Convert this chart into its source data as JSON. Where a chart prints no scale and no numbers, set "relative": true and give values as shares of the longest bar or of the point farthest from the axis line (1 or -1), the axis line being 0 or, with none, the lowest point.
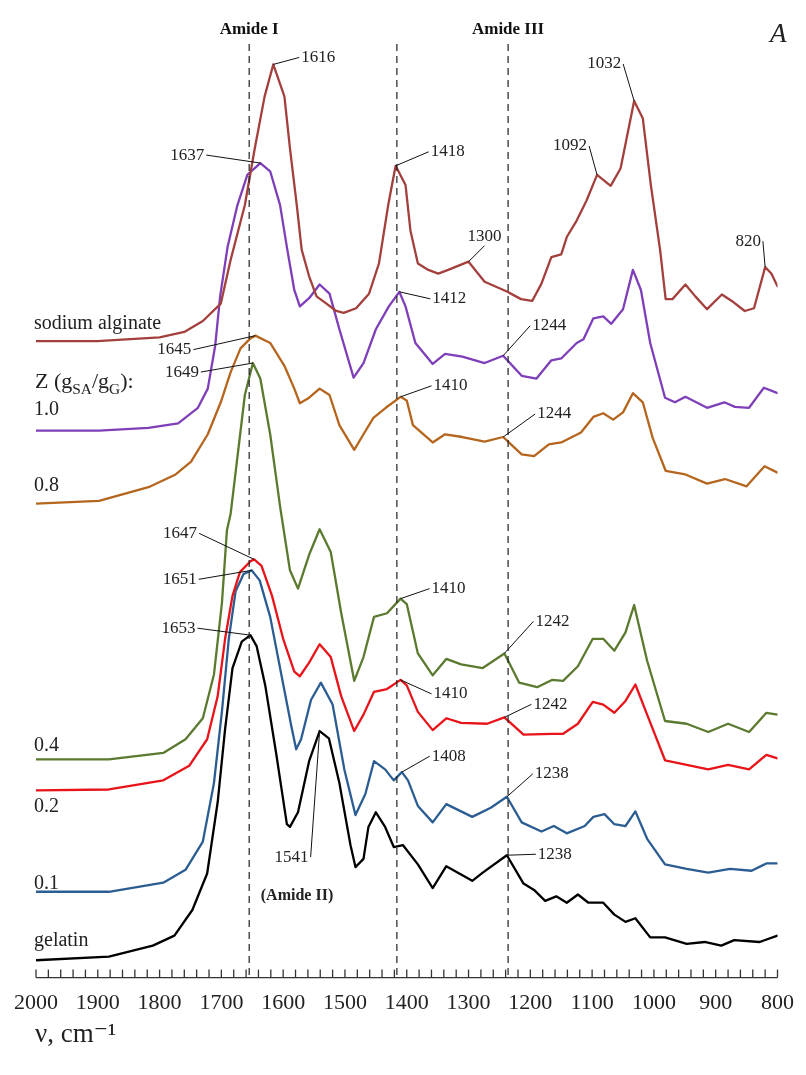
{
  "chart_data": {
    "type": "line",
    "xlabel": "ν, cm⁻¹",
    "relative": true,
    "xlim": [
      2000,
      800
    ],
    "xticks": [
      2000,
      {
        "value": 1980,
        "label": null
      },
      {
        "value": 1960,
        "label": null
      },
      {
        "value": 1940,
        "label": null
      },
      {
        "value": 1920,
        "label": null
      },
      1900,
      {
        "value": 1880,
        "label": null
      },
      {
        "value": 1860,
        "label": null
      },
      {
        "value": 1840,
        "label": null
      },
      {
        "value": 1820,
        "label": null
      },
      1800,
      {
        "value": 1780,
        "label": null
      },
      {
        "value": 1760,
        "label": null
      },
      {
        "value": 1740,
        "label": null
      },
      {
        "value": 1720,
        "label": null
      },
      1700,
      {
        "value": 1680,
        "label": null
      },
      {
        "value": 1660,
        "label": null
      },
      {
        "value": 1640,
        "label": null
      },
      {
        "value": 1620,
        "label": null
      },
      1600,
      {
        "value": 1580,
        "label": null
      },
      {
        "value": 1560,
        "label": null
      },
      {
        "value": 1540,
        "label": null
      },
      {
        "value": 1520,
        "label": null
      },
      1500,
      {
        "value": 1480,
        "label": null
      },
      {
        "value": 1460,
        "label": null
      },
      {
        "value": 1440,
        "label": null
      },
      {
        "value": 1420,
        "label": null
      },
      1400,
      {
        "value": 1380,
        "label": null
      },
      {
        "value": 1360,
        "label": null
      },
      {
        "value": 1340,
        "label": null
      },
      {
        "value": 1320,
        "label": null
      },
      1300,
      {
        "value": 1280,
        "label": null
      },
      {
        "value": 1260,
        "label": null
      },
      {
        "value": 1240,
        "label": null
      },
      {
        "value": 1220,
        "label": null
      },
      1200,
      {
        "value": 1180,
        "label": null
      },
      {
        "value": 1160,
        "label": null
      },
      {
        "value": 1140,
        "label": null
      },
      {
        "value": 1120,
        "label": null
      },
      1100,
      {
        "value": 1080,
        "label": null
      },
      {
        "value": 1060,
        "label": null
      },
      {
        "value": 1040,
        "label": null
      },
      {
        "value": 1020,
        "label": null
      },
      1000,
      {
        "value": 980,
        "label": null
      },
      {
        "value": 960,
        "label": null
      },
      {
        "value": 940,
        "label": null
      },
      {
        "value": 920,
        "label": null
      },
      900,
      {
        "value": 880,
        "label": null
      },
      {
        "value": 860,
        "label": null
      },
      {
        "value": 840,
        "label": null
      },
      {
        "value": 820,
        "label": null
      },
      800
    ],
    "series": [
      {
        "name": "sodium alginate",
        "color": "#a3403d",
        "x": [
          2000,
          1901,
          1800,
          1760,
          1730,
          1701,
          1685,
          1662,
          1646,
          1630,
          1616,
          1598,
          1589,
          1578,
          1570,
          1558,
          1546,
          1530,
          1514,
          1502,
          1482,
          1461,
          1445,
          1430,
          1418,
          1402,
          1394,
          1382,
          1365,
          1349,
          1333,
          1300,
          1274,
          1237,
          1215,
          1197,
          1182,
          1166,
          1150,
          1141,
          1125,
          1109,
          1092,
          1070,
          1054,
          1032,
          1018,
          1005,
          990,
          981,
          970,
          949,
          933,
          914,
          890,
          874,
          853,
          838,
          820,
          810,
          800
        ],
        "values": [
          0.697,
          0.697,
          0.701,
          0.707,
          0.719,
          0.738,
          0.786,
          0.846,
          0.908,
          0.965,
          1.0,
          0.965,
          0.908,
          0.846,
          0.797,
          0.768,
          0.746,
          0.738,
          0.73,
          0.728,
          0.733,
          0.749,
          0.782,
          0.846,
          0.889,
          0.868,
          0.818,
          0.782,
          0.775,
          0.771,
          0.775,
          0.784,
          0.762,
          0.751,
          0.743,
          0.741,
          0.76,
          0.789,
          0.792,
          0.811,
          0.829,
          0.851,
          0.879,
          0.867,
          0.886,
          0.96,
          0.941,
          0.868,
          0.797,
          0.743,
          0.743,
          0.759,
          0.746,
          0.732,
          0.748,
          0.741,
          0.73,
          0.733,
          0.778,
          0.771,
          0.757
        ]
      },
      {
        "name": "1.0",
        "color": "#7e3fb8",
        "x": [
          2000,
          1898,
          1818,
          1770,
          1738,
          1722,
          1710,
          1702,
          1690,
          1674,
          1658,
          1637,
          1621,
          1605,
          1594,
          1582,
          1573,
          1558,
          1541,
          1525,
          1509,
          1486,
          1470,
          1450,
          1429,
          1412,
          1402,
          1386,
          1358,
          1338,
          1310,
          1274,
          1244,
          1214,
          1190,
          1166,
          1150,
          1125,
          1114,
          1098,
          1082,
          1069,
          1050,
          1034,
          1021,
          1006,
          982,
          966,
          949,
          914,
          886,
          869,
          846,
          822,
          800
        ],
        "values": [
          0.599,
          0.599,
          0.602,
          0.607,
          0.624,
          0.645,
          0.692,
          0.746,
          0.8,
          0.846,
          0.879,
          0.892,
          0.883,
          0.846,
          0.8,
          0.753,
          0.735,
          0.744,
          0.759,
          0.749,
          0.71,
          0.657,
          0.673,
          0.71,
          0.735,
          0.751,
          0.735,
          0.695,
          0.672,
          0.683,
          0.68,
          0.673,
          0.681,
          0.659,
          0.656,
          0.676,
          0.678,
          0.695,
          0.699,
          0.722,
          0.724,
          0.716,
          0.732,
          0.775,
          0.753,
          0.695,
          0.635,
          0.63,
          0.636,
          0.624,
          0.63,
          0.625,
          0.624,
          0.646,
          0.64
        ]
      },
      {
        "name": "0.8",
        "color": "#b5651d",
        "x": [
          2000,
          1898,
          1818,
          1774,
          1749,
          1722,
          1701,
          1685,
          1669,
          1653,
          1645,
          1621,
          1598,
          1582,
          1573,
          1558,
          1541,
          1525,
          1509,
          1485,
          1470,
          1454,
          1434,
          1410,
          1400,
          1390,
          1358,
          1338,
          1310,
          1274,
          1244,
          1214,
          1194,
          1170,
          1150,
          1118,
          1098,
          1082,
          1066,
          1050,
          1034,
          1018,
          1002,
          981,
          949,
          914,
          885,
          850,
          821,
          800
        ],
        "values": [
          0.519,
          0.522,
          0.537,
          0.551,
          0.565,
          0.595,
          0.63,
          0.663,
          0.689,
          0.7,
          0.703,
          0.695,
          0.67,
          0.645,
          0.629,
          0.635,
          0.645,
          0.638,
          0.605,
          0.578,
          0.595,
          0.613,
          0.624,
          0.636,
          0.632,
          0.605,
          0.586,
          0.595,
          0.592,
          0.587,
          0.592,
          0.573,
          0.571,
          0.584,
          0.586,
          0.597,
          0.614,
          0.618,
          0.611,
          0.619,
          0.64,
          0.63,
          0.591,
          0.555,
          0.551,
          0.541,
          0.546,
          0.538,
          0.56,
          0.553
        ]
      },
      {
        "name": "0.4",
        "color": "#5b7a30",
        "x": [
          2000,
          1882,
          1794,
          1758,
          1730,
          1712,
          1699,
          1691,
          1685,
          1662,
          1649,
          1637,
          1621,
          1605,
          1589,
          1576,
          1558,
          1541,
          1523,
          1506,
          1485,
          1470,
          1453,
          1432,
          1410,
          1400,
          1382,
          1358,
          1336,
          1312,
          1277,
          1242,
          1218,
          1189,
          1165,
          1147,
          1123,
          1099,
          1082,
          1064,
          1046,
          1032,
          1011,
          982,
          947,
          912,
          880,
          846,
          818,
          800
        ],
        "values": [
          0.239,
          0.239,
          0.246,
          0.261,
          0.284,
          0.332,
          0.411,
          0.49,
          0.508,
          0.638,
          0.673,
          0.656,
          0.595,
          0.516,
          0.446,
          0.426,
          0.463,
          0.491,
          0.466,
          0.399,
          0.325,
          0.351,
          0.395,
          0.399,
          0.415,
          0.409,
          0.355,
          0.331,
          0.349,
          0.343,
          0.339,
          0.355,
          0.323,
          0.318,
          0.326,
          0.325,
          0.341,
          0.371,
          0.371,
          0.358,
          0.378,
          0.408,
          0.347,
          0.281,
          0.278,
          0.269,
          0.278,
          0.269,
          0.29,
          0.288
        ]
      },
      {
        "name": "0.2",
        "color": "#e8141a",
        "x": [
          2000,
          1882,
          1794,
          1752,
          1723,
          1706,
          1694,
          1682,
          1670,
          1653,
          1647,
          1635,
          1618,
          1600,
          1582,
          1573,
          1558,
          1541,
          1523,
          1506,
          1485,
          1470,
          1453,
          1432,
          1410,
          1400,
          1382,
          1358,
          1336,
          1312,
          1270,
          1242,
          1211,
          1165,
          1147,
          1123,
          1099,
          1082,
          1064,
          1046,
          1030,
          1011,
          982,
          947,
          912,
          880,
          846,
          818,
          800
        ],
        "values": [
          0.205,
          0.206,
          0.216,
          0.232,
          0.261,
          0.308,
          0.371,
          0.418,
          0.444,
          0.456,
          0.458,
          0.451,
          0.418,
          0.371,
          0.335,
          0.33,
          0.345,
          0.365,
          0.351,
          0.308,
          0.27,
          0.288,
          0.313,
          0.316,
          0.326,
          0.32,
          0.291,
          0.271,
          0.284,
          0.279,
          0.278,
          0.285,
          0.266,
          0.267,
          0.267,
          0.278,
          0.302,
          0.299,
          0.29,
          0.303,
          0.321,
          0.288,
          0.238,
          0.233,
          0.228,
          0.233,
          0.228,
          0.244,
          0.24
        ]
      },
      {
        "name": "0.1",
        "color": "#2b5d92",
        "x": [
          2000,
          1882,
          1794,
          1758,
          1730,
          1712,
          1699,
          1688,
          1677,
          1664,
          1651,
          1638,
          1621,
          1603,
          1587,
          1579,
          1571,
          1555,
          1539,
          1520,
          1501,
          1483,
          1467,
          1453,
          1435,
          1421,
          1408,
          1398,
          1382,
          1358,
          1336,
          1294,
          1264,
          1238,
          1214,
          1182,
          1162,
          1141,
          1112,
          1098,
          1080,
          1064,
          1046,
          1030,
          1011,
          982,
          947,
          912,
          877,
          842,
          818,
          800
        ],
        "values": [
          0.094,
          0.094,
          0.104,
          0.118,
          0.149,
          0.213,
          0.292,
          0.371,
          0.423,
          0.442,
          0.446,
          0.435,
          0.395,
          0.332,
          0.276,
          0.25,
          0.261,
          0.304,
          0.323,
          0.299,
          0.228,
          0.178,
          0.201,
          0.237,
          0.228,
          0.216,
          0.225,
          0.216,
          0.188,
          0.17,
          0.19,
          0.176,
          0.186,
          0.198,
          0.17,
          0.16,
          0.166,
          0.158,
          0.166,
          0.176,
          0.179,
          0.168,
          0.166,
          0.182,
          0.152,
          0.124,
          0.119,
          0.115,
          0.119,
          0.117,
          0.125,
          0.125
        ]
      },
      {
        "name": "gelatin",
        "color": "#000000",
        "x": [
          2000,
          1882,
          1811,
          1776,
          1747,
          1723,
          1706,
          1694,
          1682,
          1667,
          1653,
          1643,
          1629,
          1611,
          1594,
          1589,
          1576,
          1558,
          1541,
          1526,
          1509,
          1491,
          1483,
          1470,
          1462,
          1450,
          1435,
          1421,
          1406,
          1382,
          1358,
          1336,
          1294,
          1277,
          1238,
          1211,
          1194,
          1176,
          1158,
          1141,
          1123,
          1106,
          1082,
          1064,
          1046,
          1030,
          1006,
          982,
          947,
          918,
          891,
          870,
          829,
          800
        ],
        "values": [
          0.019,
          0.023,
          0.035,
          0.046,
          0.074,
          0.114,
          0.192,
          0.272,
          0.339,
          0.368,
          0.375,
          0.363,
          0.32,
          0.244,
          0.168,
          0.165,
          0.181,
          0.237,
          0.27,
          0.262,
          0.213,
          0.145,
          0.121,
          0.13,
          0.165,
          0.181,
          0.165,
          0.143,
          0.145,
          0.124,
          0.098,
          0.122,
          0.106,
          0.115,
          0.134,
          0.103,
          0.096,
          0.084,
          0.089,
          0.082,
          0.091,
          0.082,
          0.082,
          0.069,
          0.061,
          0.065,
          0.044,
          0.044,
          0.037,
          0.039,
          0.035,
          0.041,
          0.039,
          0.046
        ]
      }
    ],
    "ref_lines": [
      {
        "axis": "x",
        "value": 1655,
        "label": "Amide I",
        "line_style": "dashed"
      },
      {
        "axis": "x",
        "value": 1416,
        "label": null,
        "line_style": "dashed"
      },
      {
        "axis": "x",
        "value": 1236,
        "label": "Amide III",
        "line_style": "dashed"
      }
    ],
    "annotations": [
      {
        "text": "1616",
        "x": 1616,
        "y": 1.0
      },
      {
        "text": "1637",
        "x": 1637,
        "y": 0.892
      },
      {
        "text": "1418",
        "x": 1418,
        "y": 0.889
      },
      {
        "text": "1300",
        "x": 1300,
        "y": 0.784
      },
      {
        "text": "1092",
        "x": 1092,
        "y": 0.879
      },
      {
        "text": "1032",
        "x": 1032,
        "y": 0.96
      },
      {
        "text": "820",
        "x": 820,
        "y": 0.778
      },
      {
        "text": "1412",
        "x": 1412,
        "y": 0.751
      },
      {
        "text": "1244",
        "x": 1244,
        "y": 0.681
      },
      {
        "text": "1645",
        "x": 1645,
        "y": 0.703
      },
      {
        "text": "1649",
        "x": 1649,
        "y": 0.673
      },
      {
        "text": "1410",
        "x": 1410,
        "y": 0.636
      },
      {
        "text": "1244",
        "x": 1244,
        "y": 0.592
      },
      {
        "text": "1647",
        "x": 1647,
        "y": 0.458
      },
      {
        "text": "1651",
        "x": 1651,
        "y": 0.446
      },
      {
        "text": "1653",
        "x": 1653,
        "y": 0.375
      },
      {
        "text": "1410",
        "x": 1410,
        "y": 0.415
      },
      {
        "text": "1242",
        "x": 1242,
        "y": 0.355
      },
      {
        "text": "1410",
        "x": 1410,
        "y": 0.326
      },
      {
        "text": "1242",
        "x": 1242,
        "y": 0.285
      },
      {
        "text": "1408",
        "x": 1408,
        "y": 0.225
      },
      {
        "text": "1238",
        "x": 1238,
        "y": 0.198
      },
      {
        "text": "1541",
        "x": 1541,
        "y": 0.27
      },
      {
        "text": "1238",
        "x": 1238,
        "y": 0.134
      },
      "(Amide II)",
      "Z (g$_{SA}$/g$_{G}$):",
      "A"
    ]
  }
}
